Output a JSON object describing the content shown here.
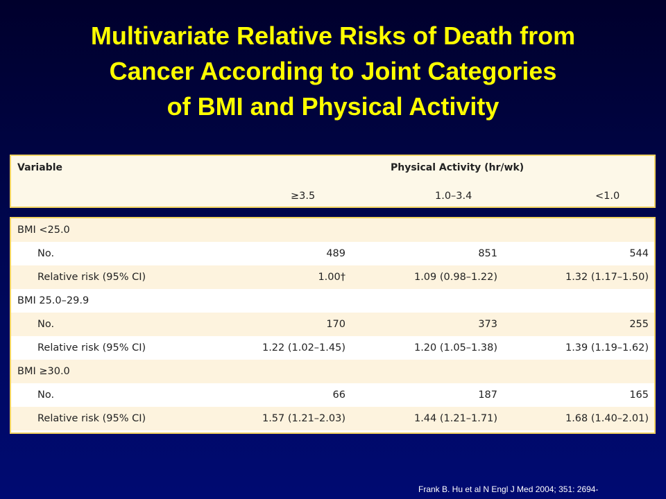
{
  "title": {
    "line1": "Multivariate Relative Risks of Death from",
    "line2": "Cancer According to Joint Categories",
    "line3": "of BMI and Physical Activity"
  },
  "table": {
    "header": {
      "variable": "Variable",
      "group": "Physical Activity (hr/wk)",
      "columns": [
        "≥3.5",
        "1.0–3.4",
        "<1.0"
      ]
    },
    "rows": [
      {
        "label": "BMI <25.0",
        "values": [
          "",
          "",
          ""
        ]
      },
      {
        "label": "No.",
        "values": [
          "489",
          "851",
          "544"
        ]
      },
      {
        "label": "Relative risk (95% CI)",
        "values": [
          "1.00†",
          "1.09 (0.98–1.22)",
          "1.32 (1.17–1.50)"
        ]
      },
      {
        "label": "BMI 25.0–29.9",
        "values": [
          "",
          "",
          ""
        ]
      },
      {
        "label": "No.",
        "values": [
          "170",
          "373",
          "255"
        ]
      },
      {
        "label": "Relative risk (95% CI)",
        "values": [
          "1.22 (1.02–1.45)",
          "1.20 (1.05–1.38)",
          "1.39 (1.19–1.62)"
        ]
      },
      {
        "label": "BMI ≥30.0",
        "values": [
          "",
          "",
          ""
        ]
      },
      {
        "label": "No.",
        "values": [
          "66",
          "187",
          "165"
        ]
      },
      {
        "label": "Relative risk (95% CI)",
        "values": [
          "1.57 (1.21–2.03)",
          "1.44 (1.21–1.71)",
          "1.68 (1.40–2.01)"
        ]
      }
    ]
  },
  "citation": "Frank B. Hu et al N Engl J Med 2004; 351: 2694-"
}
